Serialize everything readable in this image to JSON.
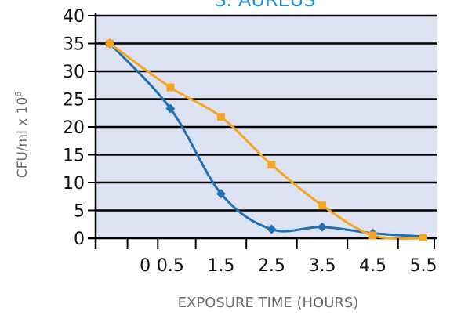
{
  "chart_data": {
    "type": "line",
    "title": "S. AUREUS",
    "xlabel": "EXPOSURE TIME (HOURS)",
    "ylabel": "CFU/ml x 10",
    "ylabel_sup": "6",
    "x_tick_labels": [
      "0",
      "0.5",
      "1.5",
      "2.5",
      "3.5",
      "4.5",
      "5.5"
    ],
    "ylim": [
      0,
      40
    ],
    "y_ticks": [
      0,
      5,
      10,
      15,
      20,
      25,
      30,
      35,
      40
    ],
    "grid": true,
    "x_positions": [
      -0.7,
      0,
      0.5,
      1.5,
      2.5,
      3.5,
      4.5,
      5.5
    ],
    "series": [
      {
        "color": "#1f6fb5",
        "marker": "diamond",
        "x": [
          -0.7,
          0.5,
          1.5,
          2.5,
          3.5,
          4.5
        ],
        "values": [
          35,
          23.3,
          8,
          1.6,
          2,
          0.9
        ],
        "end_x": 5.5,
        "end_value": 0.3
      },
      {
        "color": "#f5a623",
        "marker": "square",
        "x": [
          -0.7,
          0.5,
          1.5,
          2.5,
          3.5,
          4.5,
          5.5
        ],
        "values": [
          35,
          27.1,
          21.8,
          13.2,
          5.9,
          0.5,
          0
        ]
      }
    ],
    "colors": {
      "plot_background": "#dde3f2",
      "grid": "#000000",
      "title": "#1e90d6",
      "axis_label": "#6b6b6b"
    }
  }
}
